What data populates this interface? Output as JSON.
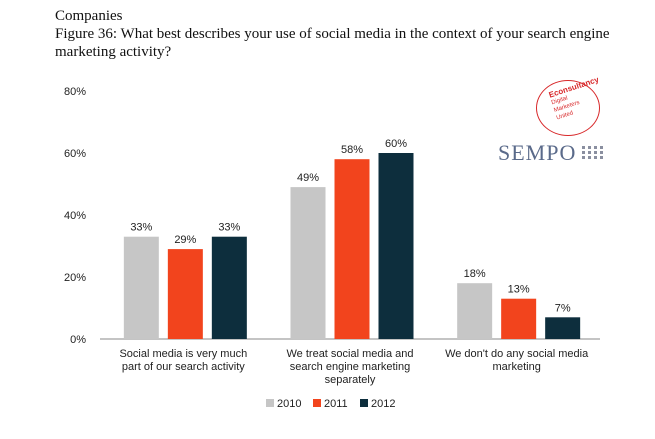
{
  "header": {
    "line1": "Companies",
    "title": "Figure 36: What best describes your use of social media in the context of your search engine marketing activity?"
  },
  "logos": {
    "badge_title": "Econsultancy",
    "badge_line1": "Digital",
    "badge_line2": "Marketers",
    "badge_line3": "United",
    "sempo": "SEMPO"
  },
  "chart_data": {
    "type": "bar",
    "title": "Figure 36: What best describes your use of social media in the context of your search engine marketing activity?",
    "xlabel": "",
    "ylabel": "",
    "ylim": [
      0,
      80
    ],
    "yticks": [
      0,
      20,
      40,
      60,
      80
    ],
    "ytick_labels": [
      "0%",
      "20%",
      "40%",
      "60%",
      "80%"
    ],
    "categories": [
      [
        "Social media is very much",
        "part of our search activity"
      ],
      [
        "We treat social media and",
        "search engine marketing",
        "separately"
      ],
      [
        "We don't do any social media",
        "marketing"
      ]
    ],
    "series": [
      {
        "name": "2010",
        "color": "#c6c6c6",
        "values": [
          33,
          49,
          18
        ],
        "labels": [
          "33%",
          "49%",
          "18%"
        ]
      },
      {
        "name": "2011",
        "color": "#f2441d",
        "values": [
          29,
          58,
          13
        ],
        "labels": [
          "29%",
          "58%",
          "13%"
        ]
      },
      {
        "name": "2012",
        "color": "#0d2e3d",
        "values": [
          33,
          60,
          7
        ],
        "labels": [
          "33%",
          "60%",
          "7%"
        ]
      }
    ],
    "legend_position": "bottom",
    "grid": false
  }
}
